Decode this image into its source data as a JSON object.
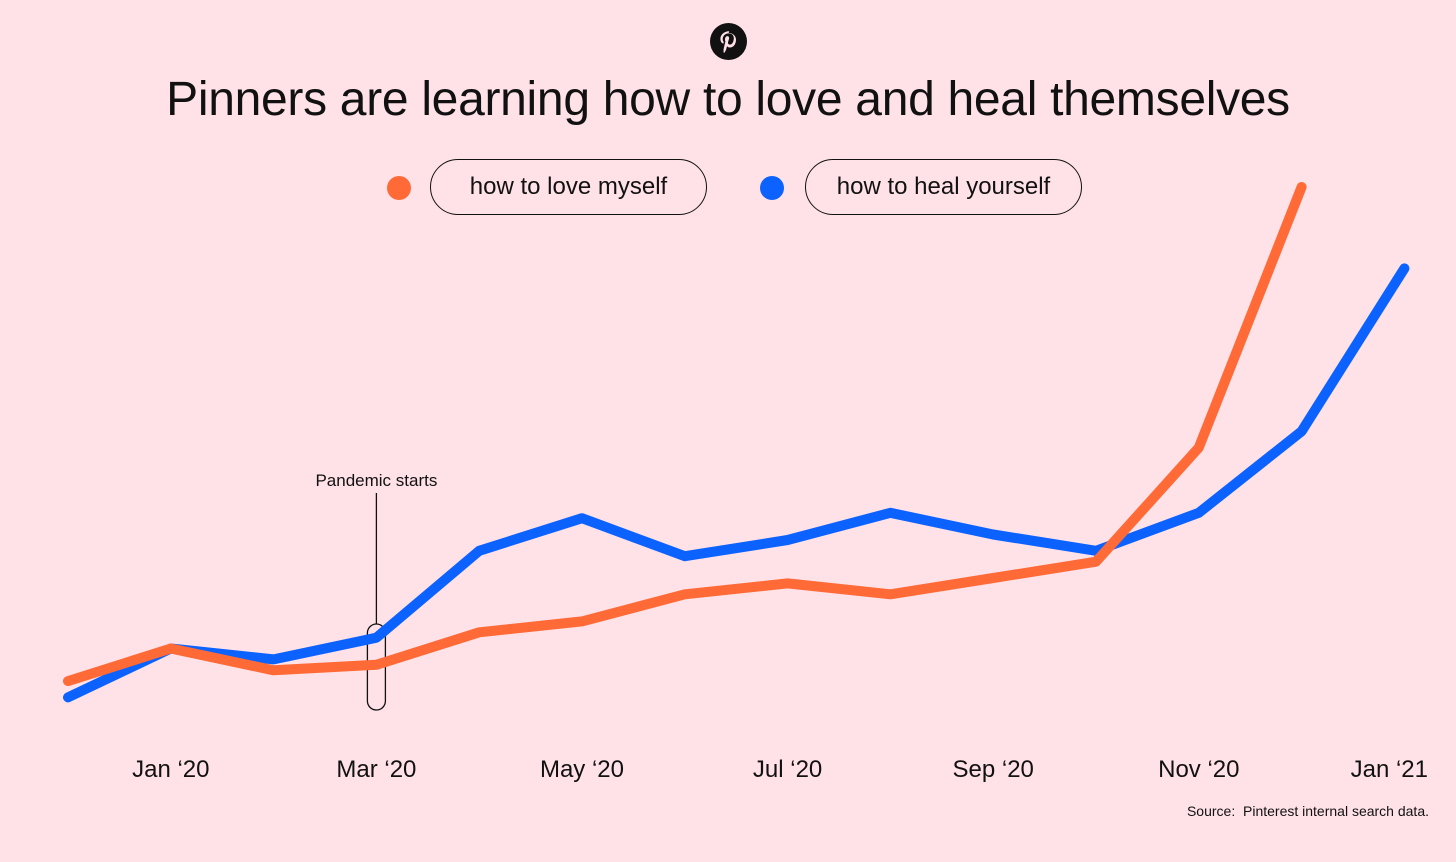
{
  "logo": {
    "icon": "pinterest-logo-icon",
    "color": "#111111"
  },
  "title": "Pinners are learning how to love and heal themselves",
  "legend": [
    {
      "label": "how to love myself",
      "color": "#ff6a36"
    },
    {
      "label": "how to heal yourself",
      "color": "#0b62ff"
    }
  ],
  "chart_data": {
    "type": "line",
    "title": "Pinners are learning how to love and heal themselves",
    "xlabel": "",
    "ylabel": "",
    "grid": false,
    "x_ticks": [
      "Jan ‘20",
      "Mar ‘20",
      "May ‘20",
      "Jul ‘20",
      "Sep ‘20",
      "Nov ‘20",
      "Jan ‘21"
    ],
    "x": [
      "Dec ‘19",
      "Jan ‘20",
      "Feb ‘20",
      "Mar ‘20",
      "Apr ‘20",
      "May ‘20",
      "Jun ‘20",
      "Jul ‘20",
      "Aug ‘20",
      "Sep ‘20",
      "Oct ‘20",
      "Nov ‘20",
      "Dec ‘20",
      "Jan ‘21"
    ],
    "ylim": [
      0,
      100
    ],
    "series": [
      {
        "name": "how to love myself",
        "color": "#ff6a36",
        "values": [
          9,
          15,
          11,
          12,
          18,
          20,
          25,
          27,
          25,
          28,
          31,
          52,
          100,
          null
        ]
      },
      {
        "name": "how to heal yourself",
        "color": "#0b62ff",
        "values": [
          6,
          15,
          13,
          17,
          33,
          39,
          32,
          35,
          40,
          36,
          33,
          40,
          55,
          85
        ]
      }
    ],
    "annotations": [
      {
        "label": "Pandemic starts",
        "x": "Mar ‘20"
      }
    ]
  },
  "source": "Source:  Pinterest internal search data."
}
